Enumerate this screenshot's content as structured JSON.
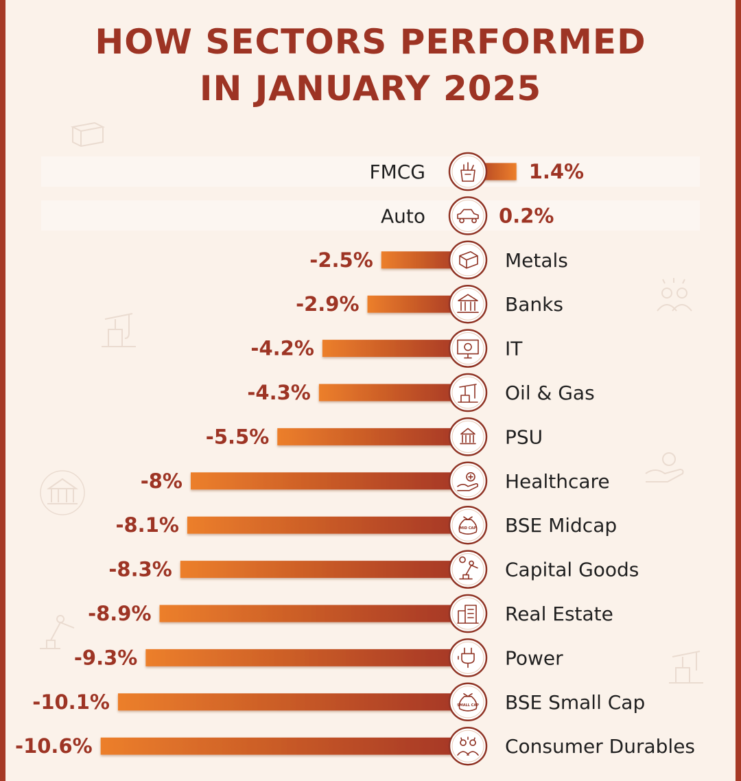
{
  "title_line1": "HOW SECTORS PERFORMED",
  "title_line2": "IN JANUARY 2025",
  "colors": {
    "title": "#9d3424",
    "bar_start": "#ec7f2a",
    "bar_end": "#a43525",
    "value_text": "#9d3424",
    "label_text": "#1f1f1f",
    "frame": "#a63a26",
    "background": "#fbf2ea"
  },
  "chart_data": {
    "type": "bar",
    "orientation": "horizontal",
    "title": "HOW SECTORS PERFORMED IN JANUARY 2025",
    "xlabel": "",
    "ylabel": "",
    "unit": "%",
    "xlim": [
      -10.6,
      1.4
    ],
    "grid": false,
    "categories": [
      "FMCG",
      "Auto",
      "Metals",
      "Banks",
      "IT",
      "Oil & Gas",
      "PSU",
      "Healthcare",
      "BSE Midcap",
      "Capital Goods",
      "Real Estate",
      "Power",
      "BSE Small Cap",
      "Consumer Durables"
    ],
    "values": [
      1.4,
      0.2,
      -2.5,
      -2.9,
      -4.2,
      -4.3,
      -5.5,
      -8,
      -8.1,
      -8.3,
      -8.9,
      -9.3,
      -10.1,
      -10.6
    ],
    "value_labels": [
      "1.4%",
      "0.2%",
      "-2.5%",
      "-2.9%",
      "-4.2%",
      "-4.3%",
      "-5.5%",
      "-8%",
      "-8.1%",
      "-8.3%",
      "-8.9%",
      "-9.3%",
      "-10.1%",
      "-10.6%"
    ],
    "icons": [
      "grocery-bag-icon",
      "car-icon",
      "steel-beam-icon",
      "bank-icon",
      "computer-gear-icon",
      "oil-pump-icon",
      "government-building-icon",
      "healthcare-hand-icon",
      "money-bag-mid-cap-icon",
      "robotic-arm-icon",
      "buildings-icon",
      "power-plug-icon",
      "money-bag-small-cap-icon",
      "consumer-people-icon"
    ],
    "icon_texts": {
      "8": "MID CAP",
      "12": "SMALL CAP"
    }
  }
}
